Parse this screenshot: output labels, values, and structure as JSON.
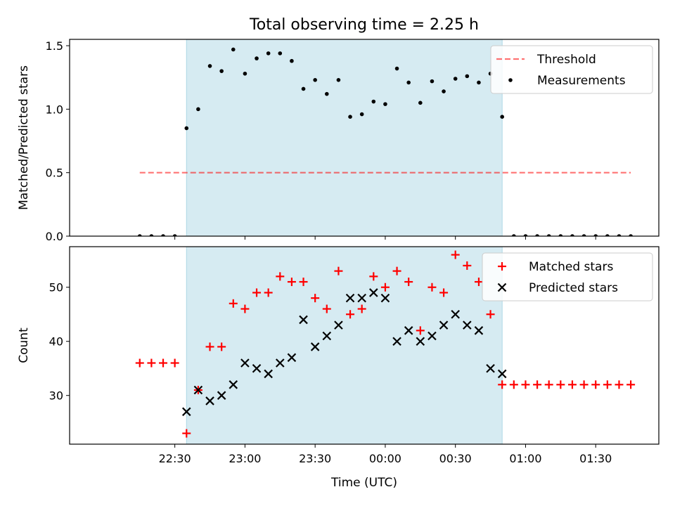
{
  "figure": {
    "title": "Total observing time = 2.25 h",
    "xlabel": "Time (UTC)",
    "xticks": [
      "22:30",
      "23:00",
      "23:30",
      "00:00",
      "00:30",
      "01:00",
      "01:30"
    ],
    "colors": {
      "shade": "#add8e6",
      "threshold": "#ff0000",
      "measurement": "#000000",
      "matched": "#ff0000",
      "predicted": "#000000",
      "frame": "#000000"
    }
  },
  "chart_data": [
    {
      "type": "scatter",
      "ylabel": "Matched/Predicted stars",
      "x_unit": "minutes relative to 00:00 UTC",
      "xlim": [
        -135,
        117
      ],
      "ylim": [
        0.0,
        1.55
      ],
      "yticks": [
        "0.0",
        "0.5",
        "1.0",
        "1.5"
      ],
      "shaded_interval": [
        "22:35",
        "00:50"
      ],
      "threshold": {
        "value": 0.5,
        "x_range": [
          "22:15",
          "01:45"
        ]
      },
      "legend": {
        "placement": "top-right",
        "entries": [
          "Threshold",
          "Measurements"
        ]
      },
      "series": [
        {
          "name": "Measurements",
          "x": [
            -105,
            -100,
            -95,
            -90,
            -85,
            -80,
            -75,
            -70,
            -65,
            -60,
            -55,
            -50,
            -45,
            -40,
            -35,
            -30,
            -25,
            -20,
            -15,
            -10,
            -5,
            0,
            5,
            10,
            15,
            20,
            25,
            30,
            35,
            40,
            45,
            50,
            55,
            60,
            65,
            70,
            75,
            80,
            85,
            90,
            95,
            100,
            105
          ],
          "y": [
            0,
            0,
            0,
            0,
            0.85,
            1.0,
            1.34,
            1.3,
            1.47,
            1.28,
            1.4,
            1.44,
            1.44,
            1.38,
            1.16,
            1.23,
            1.12,
            1.23,
            0.94,
            0.96,
            1.06,
            1.04,
            1.32,
            1.21,
            1.05,
            1.22,
            1.14,
            1.24,
            1.26,
            1.21,
            1.28,
            0.94,
            0,
            0,
            0,
            0,
            0,
            0,
            0,
            0,
            0,
            0,
            0
          ]
        }
      ],
      "x_start_minutes": -105
    },
    {
      "type": "scatter",
      "ylabel": "Count",
      "x_unit": "minutes relative to 00:00 UTC",
      "xlim": [
        -135,
        117
      ],
      "ylim": [
        21,
        57.5
      ],
      "yticks": [
        "30",
        "40",
        "50"
      ],
      "shaded_interval": [
        "22:35",
        "00:50"
      ],
      "legend": {
        "placement": "top-right",
        "entries": [
          "Matched stars",
          "Predicted stars"
        ]
      },
      "series": [
        {
          "name": "Matched stars",
          "marker": "plus",
          "x": [
            -105,
            -100,
            -95,
            -90,
            -85,
            -80,
            -75,
            -70,
            -65,
            -60,
            -55,
            -50,
            -45,
            -40,
            -35,
            -30,
            -25,
            -20,
            -15,
            -10,
            -5,
            0,
            5,
            10,
            15,
            20,
            25,
            30,
            35,
            40,
            45,
            50,
            55,
            60,
            65,
            70,
            75,
            80,
            85,
            90,
            95,
            100,
            105
          ],
          "y": [
            36,
            36,
            36,
            36,
            23,
            31,
            39,
            39,
            47,
            46,
            49,
            49,
            52,
            51,
            51,
            48,
            46,
            53,
            45,
            46,
            52,
            50,
            53,
            51,
            42,
            50,
            49,
            56,
            54,
            51,
            45,
            32,
            32,
            32,
            32,
            32,
            32,
            32,
            32,
            32,
            32,
            32,
            32
          ]
        },
        {
          "name": "Predicted stars",
          "marker": "x",
          "x": [
            -85,
            -80,
            -75,
            -70,
            -65,
            -60,
            -55,
            -50,
            -45,
            -40,
            -35,
            -30,
            -25,
            -20,
            -15,
            -10,
            -5,
            0,
            5,
            10,
            15,
            20,
            25,
            30,
            35,
            40,
            45,
            50
          ],
          "y": [
            27,
            31,
            29,
            30,
            32,
            36,
            35,
            34,
            36,
            37,
            44,
            39,
            41,
            43,
            48,
            48,
            49,
            48,
            40,
            42,
            40,
            41,
            43,
            45,
            43,
            42,
            35,
            34
          ]
        }
      ]
    }
  ]
}
